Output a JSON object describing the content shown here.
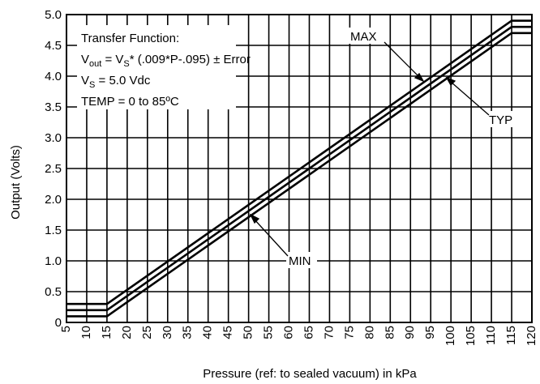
{
  "chart_data": {
    "type": "line",
    "title": "",
    "xlabel": "Pressure (ref: to sealed vacuum) in kPa",
    "ylabel": "Output (Volts)",
    "xlim": [
      5,
      120
    ],
    "ylim": [
      0,
      5.0
    ],
    "grid": true,
    "x_ticks": [
      "5",
      "10",
      "15",
      "20",
      "25",
      "30",
      "35",
      "40",
      "45",
      "50",
      "55",
      "60",
      "65",
      "70",
      "75",
      "80",
      "85",
      "90",
      "95",
      "100",
      "105",
      "110",
      "115",
      "120"
    ],
    "y_ticks": [
      "0",
      "0.5",
      "1.0",
      "1.5",
      "2.0",
      "2.5",
      "3.0",
      "3.5",
      "4.0",
      "4.5",
      "5.0"
    ],
    "series": [
      {
        "name": "MAX",
        "points": [
          [
            5,
            0.3
          ],
          [
            15,
            0.3
          ],
          [
            115,
            4.9
          ],
          [
            120,
            4.9
          ]
        ]
      },
      {
        "name": "TYP",
        "points": [
          [
            5,
            0.2
          ],
          [
            15,
            0.2
          ],
          [
            115,
            4.8
          ],
          [
            120,
            4.8
          ]
        ]
      },
      {
        "name": "MIN",
        "points": [
          [
            5,
            0.1
          ],
          [
            15,
            0.1
          ],
          [
            115,
            4.7
          ],
          [
            120,
            4.7
          ]
        ]
      }
    ],
    "annotations": {
      "transfer_title": "Transfer Function:",
      "vout_v": "V",
      "vout_sub": "out",
      "vout_eq": " = V",
      "vs_sub": "S",
      "vout_rest": "* (.009*P-.095) ± Error",
      "vs_v": "V",
      "vs_sub2": "S",
      "vs_rest": " = 5.0 Vdc",
      "temp": "TEMP = 0 to 85ºC",
      "max_label": "MAX",
      "typ_label": "TYP",
      "min_label": "MIN"
    }
  }
}
